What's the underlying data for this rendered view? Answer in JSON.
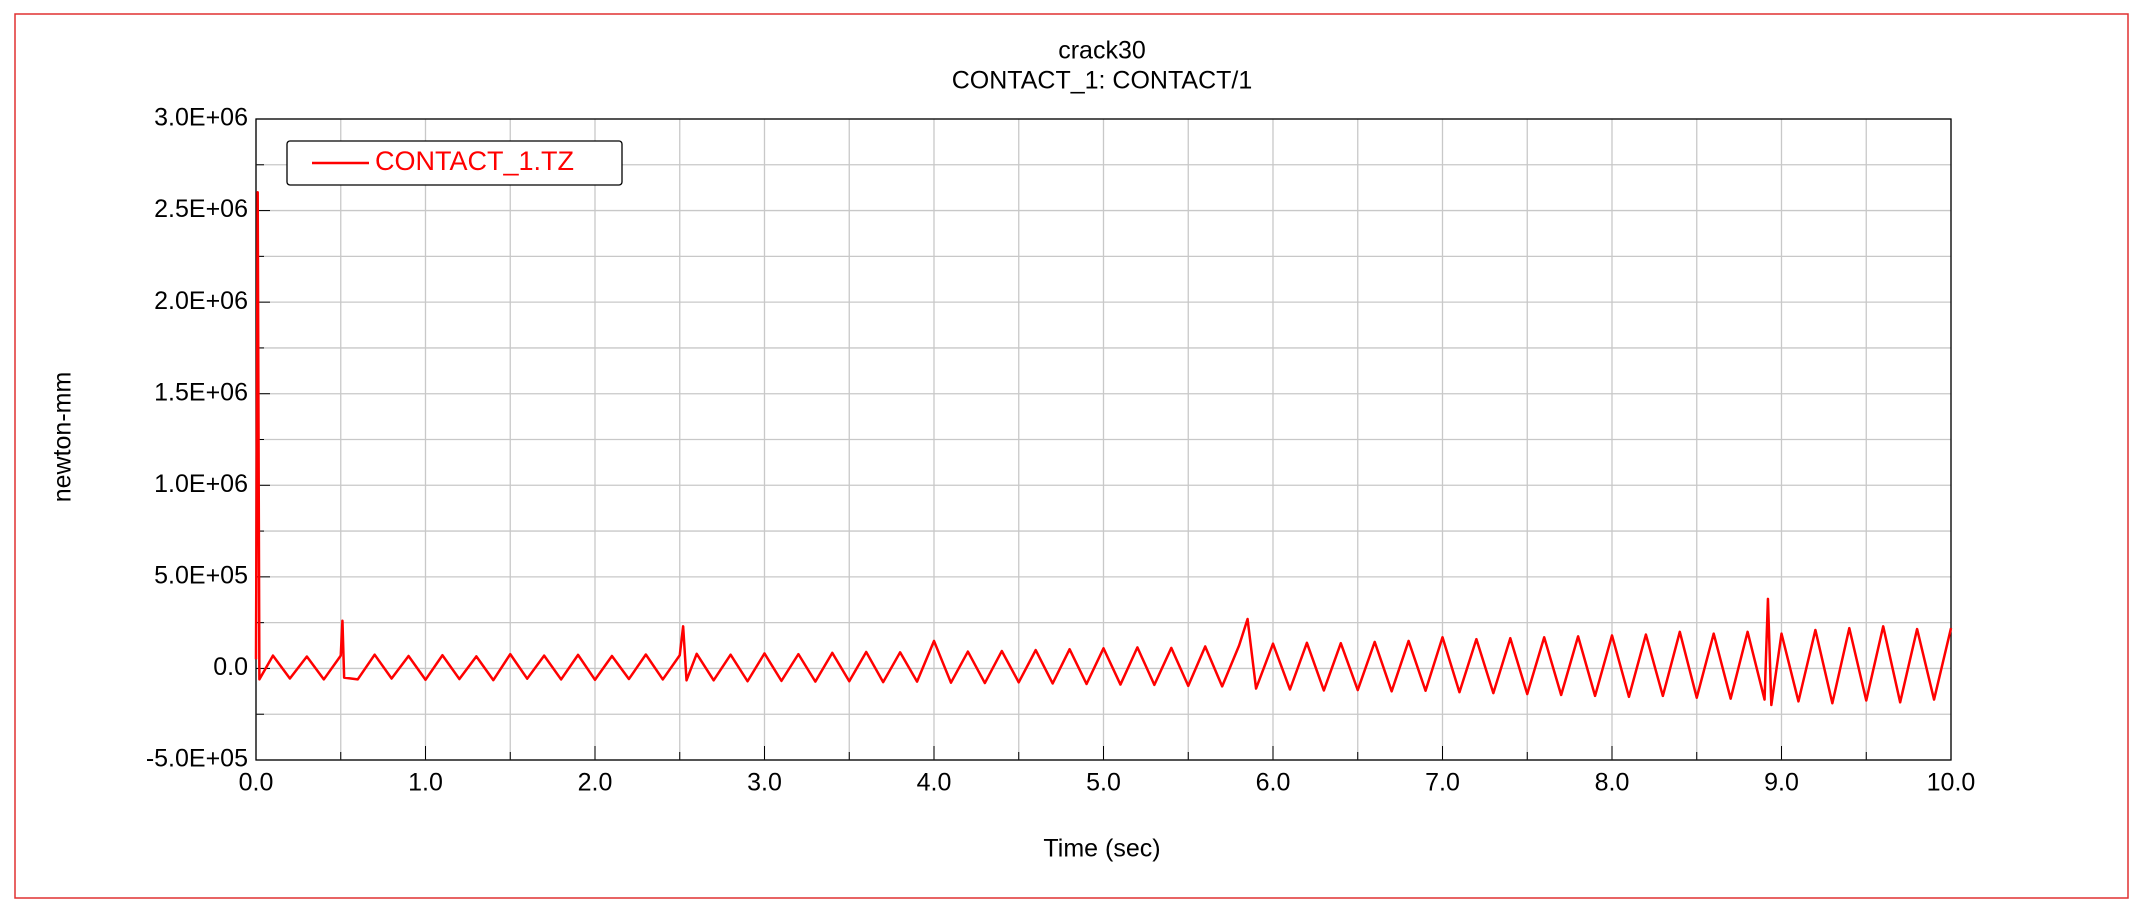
{
  "chart_data": {
    "type": "line",
    "title": "crack30",
    "subtitle": "CONTACT_1: CONTACT/1",
    "x_label": "Time (sec)",
    "y_label": "newton-mm",
    "x": [
      0,
      0.01,
      0.02,
      0.1,
      0.2,
      0.3,
      0.4,
      0.5,
      0.51,
      0.52,
      0.6,
      0.7,
      0.8,
      0.9,
      1.0,
      1.1,
      1.2,
      1.3,
      1.4,
      1.5,
      1.6,
      1.7,
      1.8,
      1.9,
      2.0,
      2.1,
      2.2,
      2.3,
      2.4,
      2.5,
      2.52,
      2.54,
      2.6,
      2.7,
      2.8,
      2.9,
      3.0,
      3.1,
      3.2,
      3.3,
      3.4,
      3.5,
      3.6,
      3.7,
      3.8,
      3.9,
      4.0,
      4.1,
      4.2,
      4.3,
      4.4,
      4.5,
      4.6,
      4.7,
      4.8,
      4.9,
      5.0,
      5.1,
      5.2,
      5.3,
      5.4,
      5.5,
      5.6,
      5.7,
      5.8,
      5.85,
      5.9,
      6.0,
      6.1,
      6.2,
      6.3,
      6.4,
      6.5,
      6.6,
      6.7,
      6.8,
      6.9,
      7.0,
      7.1,
      7.2,
      7.3,
      7.4,
      7.5,
      7.6,
      7.7,
      7.8,
      7.9,
      8.0,
      8.1,
      8.2,
      8.3,
      8.4,
      8.5,
      8.6,
      8.7,
      8.8,
      8.9,
      8.92,
      8.94,
      9.0,
      9.1,
      9.2,
      9.3,
      9.4,
      9.5,
      9.6,
      9.7,
      9.8,
      9.9,
      10.0
    ],
    "series": [
      {
        "name": "CONTACT_1.TZ",
        "color": "#ff0000",
        "values": [
          50000,
          2600000,
          -60000,
          70000,
          -55000,
          65000,
          -60000,
          70000,
          260000,
          -50000,
          -60000,
          75000,
          -55000,
          68000,
          -62000,
          72000,
          -58000,
          66000,
          -64000,
          78000,
          -56000,
          70000,
          -60000,
          74000,
          -62000,
          68000,
          -58000,
          76000,
          -60000,
          72000,
          230000,
          -65000,
          80000,
          -65000,
          75000,
          -70000,
          82000,
          -68000,
          78000,
          -72000,
          85000,
          -70000,
          90000,
          -75000,
          88000,
          -72000,
          150000,
          -78000,
          92000,
          -80000,
          95000,
          -76000,
          100000,
          -82000,
          105000,
          -85000,
          110000,
          -88000,
          115000,
          -90000,
          112000,
          -95000,
          120000,
          -98000,
          125000,
          270000,
          -110000,
          135000,
          -115000,
          140000,
          -120000,
          138000,
          -118000,
          145000,
          -125000,
          150000,
          -122000,
          170000,
          -130000,
          160000,
          -135000,
          165000,
          -140000,
          170000,
          -145000,
          175000,
          -150000,
          180000,
          -155000,
          185000,
          -150000,
          200000,
          -160000,
          190000,
          -165000,
          200000,
          -170000,
          380000,
          -200000,
          190000,
          -180000,
          210000,
          -190000,
          220000,
          -175000,
          230000,
          -185000,
          215000,
          -170000,
          220000
        ]
      }
    ],
    "xlim": [
      0,
      10
    ],
    "ylim": [
      -500000,
      3000000
    ],
    "xticks": [
      {
        "value": 0,
        "label": "0.0"
      },
      {
        "value": 1,
        "label": "1.0"
      },
      {
        "value": 2,
        "label": "2.0"
      },
      {
        "value": 3,
        "label": "3.0"
      },
      {
        "value": 4,
        "label": "4.0"
      },
      {
        "value": 5,
        "label": "5.0"
      },
      {
        "value": 6,
        "label": "6.0"
      },
      {
        "value": 7,
        "label": "7.0"
      },
      {
        "value": 8,
        "label": "8.0"
      },
      {
        "value": 9,
        "label": "9.0"
      },
      {
        "value": 10,
        "label": "10.0"
      }
    ],
    "yticks": [
      {
        "value": -500000,
        "label": "-5.0E+05"
      },
      {
        "value": 0,
        "label": "0.0"
      },
      {
        "value": 500000,
        "label": "5.0E+05"
      },
      {
        "value": 1000000,
        "label": "1.0E+06"
      },
      {
        "value": 1500000,
        "label": "1.5E+06"
      },
      {
        "value": 2000000,
        "label": "2.0E+06"
      },
      {
        "value": 2500000,
        "label": "2.5E+06"
      },
      {
        "value": 3000000,
        "label": "3.0E+06"
      }
    ],
    "grid": true,
    "legend": "upper left"
  }
}
